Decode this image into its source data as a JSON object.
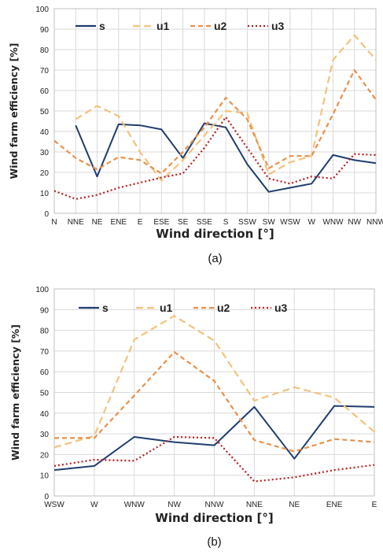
{
  "chart_data": [
    {
      "type": "line",
      "caption": "(a)",
      "xlabel": "Wind direction [°]",
      "ylabel": "Wind farm efficiency [%]",
      "ylim": [
        0,
        100
      ],
      "yticks": [
        0,
        10,
        20,
        30,
        40,
        50,
        60,
        70,
        80,
        90,
        100
      ],
      "grid": true,
      "legend": "top",
      "categories": [
        "N",
        "NNE",
        "NE",
        "ENE",
        "E",
        "ESE",
        "SE",
        "SSE",
        "S",
        "SSW",
        "SW",
        "WSW",
        "W",
        "WNW",
        "NW",
        "NNW"
      ],
      "series": [
        {
          "name": "s",
          "color": "#1f3d6e",
          "dash": "solid",
          "values": [
            null,
            43,
            18,
            43.5,
            43,
            41,
            27,
            44,
            42,
            24,
            10.5,
            12.5,
            14.5,
            28.5,
            26,
            24.5
          ]
        },
        {
          "name": "u1",
          "color": "#f3c27c",
          "dash": "long-dash",
          "values": [
            null,
            46,
            52.5,
            47.5,
            30,
            16,
            26,
            38,
            50,
            49,
            19,
            25,
            28,
            75,
            87,
            75
          ]
        },
        {
          "name": "u2",
          "color": "#e8914a",
          "dash": "dash",
          "values": [
            35.5,
            27,
            21.5,
            27.5,
            26,
            19.5,
            30,
            42,
            56.5,
            46,
            22,
            28,
            28,
            48.5,
            70,
            55.5
          ]
        },
        {
          "name": "u3",
          "color": "#b81d1d",
          "dash": "dotted",
          "values": [
            11,
            7,
            9,
            12.5,
            15,
            17.5,
            19.5,
            32,
            47,
            32,
            17,
            14.5,
            18,
            17,
            29,
            28.5
          ]
        }
      ]
    },
    {
      "type": "line",
      "caption": "(b)",
      "xlabel": "Wind direction [°]",
      "ylabel": "Wind farm efficiency [%]",
      "ylim": [
        0,
        100
      ],
      "yticks": [
        0,
        10,
        20,
        30,
        40,
        50,
        60,
        70,
        80,
        90,
        100
      ],
      "grid": true,
      "legend": "top",
      "categories": [
        "WSW",
        "W",
        "WNW",
        "NW",
        "NNW",
        "NNE",
        "NE",
        "ENE",
        "E"
      ],
      "series": [
        {
          "name": "s",
          "color": "#1f3d6e",
          "dash": "solid",
          "values": [
            12.5,
            14.5,
            28.5,
            26,
            24.5,
            43,
            18,
            43.5,
            43
          ]
        },
        {
          "name": "u1",
          "color": "#f3c27c",
          "dash": "long-dash",
          "values": [
            23.5,
            29,
            75.5,
            87,
            75,
            46,
            52.5,
            47.5,
            31
          ]
        },
        {
          "name": "u2",
          "color": "#e8914a",
          "dash": "dash",
          "values": [
            28,
            28,
            48.5,
            69.5,
            55.5,
            27,
            21.5,
            27.5,
            26
          ]
        },
        {
          "name": "u3",
          "color": "#b81d1d",
          "dash": "dotted",
          "values": [
            14.5,
            17.5,
            17,
            28.5,
            28,
            7,
            9,
            12.5,
            15
          ]
        }
      ]
    }
  ]
}
